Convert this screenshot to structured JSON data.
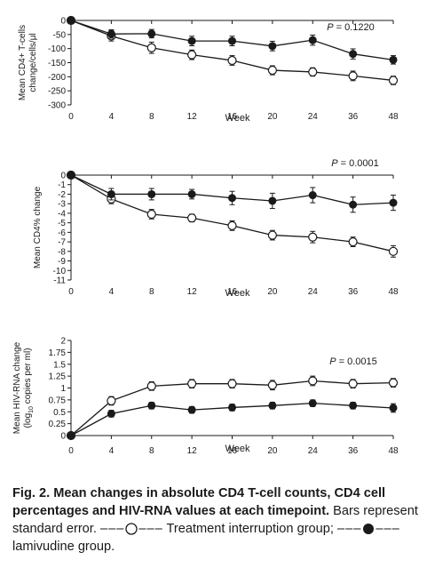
{
  "chart_data": [
    {
      "type": "line",
      "ylabel": "Mean CD4+ T-cells change/cells/μl",
      "xlabel": "Week",
      "annotation": "P = 0.1220",
      "x": [
        0,
        4,
        8,
        12,
        16,
        20,
        24,
        36,
        48
      ],
      "ylim": [
        -300,
        0
      ],
      "yticks": [
        0,
        -50,
        -100,
        -150,
        -200,
        -250,
        -300
      ],
      "series": [
        {
          "marker": "open",
          "values": [
            0,
            -55,
            -97,
            -122,
            -142,
            -177,
            -183,
            -197,
            -213
          ],
          "errors": [
            0,
            18,
            20,
            17,
            17,
            16,
            15,
            17,
            15
          ]
        },
        {
          "marker": "filled",
          "values": [
            0,
            -48,
            -47,
            -73,
            -73,
            -91,
            -70,
            -119,
            -140
          ],
          "errors": [
            0,
            15,
            15,
            17,
            17,
            17,
            18,
            18,
            15
          ]
        }
      ]
    },
    {
      "type": "line",
      "ylabel": "Mean  CD4% change",
      "xlabel": "Week",
      "annotation": "P = 0.0001",
      "x": [
        0,
        4,
        8,
        12,
        16,
        20,
        24,
        36,
        48
      ],
      "ylim": [
        -11,
        0
      ],
      "yticks": [
        0,
        -1,
        -2,
        -3,
        -4,
        -5,
        -6,
        -7,
        -8,
        -9,
        -10,
        -11
      ],
      "series": [
        {
          "marker": "open",
          "values": [
            0,
            -2.5,
            -4.1,
            -4.5,
            -5.3,
            -6.3,
            -6.5,
            -7.0,
            -8.0
          ],
          "errors": [
            0,
            0.5,
            0.5,
            0.4,
            0.5,
            0.5,
            0.6,
            0.5,
            0.6
          ]
        },
        {
          "marker": "filled",
          "values": [
            0,
            -2.0,
            -2.0,
            -2.0,
            -2.4,
            -2.7,
            -2.1,
            -3.1,
            -2.9
          ],
          "errors": [
            0,
            0.6,
            0.6,
            0.5,
            0.7,
            0.8,
            0.8,
            0.8,
            0.8
          ]
        }
      ]
    },
    {
      "type": "line",
      "ylabel": "Mean HIV-RNA change (log10 copies per ml)",
      "xlabel": "Week",
      "annotation": "P = 0.0015",
      "x": [
        0,
        4,
        8,
        12,
        16,
        20,
        24,
        36,
        48
      ],
      "ylim": [
        0,
        2
      ],
      "yticks": [
        0,
        0.25,
        0.5,
        0.75,
        1,
        1.25,
        1.5,
        1.75,
        2
      ],
      "series": [
        {
          "marker": "open",
          "values": [
            0,
            0.73,
            1.04,
            1.09,
            1.09,
            1.06,
            1.15,
            1.09,
            1.11
          ],
          "errors": [
            0,
            0.09,
            0.09,
            0.09,
            0.09,
            0.1,
            0.1,
            0.09,
            0.09
          ]
        },
        {
          "marker": "filled",
          "values": [
            0,
            0.46,
            0.63,
            0.54,
            0.59,
            0.63,
            0.68,
            0.63,
            0.58
          ],
          "errors": [
            0,
            0.07,
            0.07,
            0.07,
            0.07,
            0.07,
            0.07,
            0.07,
            0.09
          ]
        }
      ]
    }
  ],
  "caption": {
    "fig_label": "Fig. 2.",
    "title": "Mean changes in absolute CD4 T-cell counts, CD4 cell percentages and HIV-RNA values at each timepoint.",
    "text1": "Bars represent standard error.",
    "legend_open": "Treatment interruption group;",
    "legend_filled": "lamivudine group."
  }
}
